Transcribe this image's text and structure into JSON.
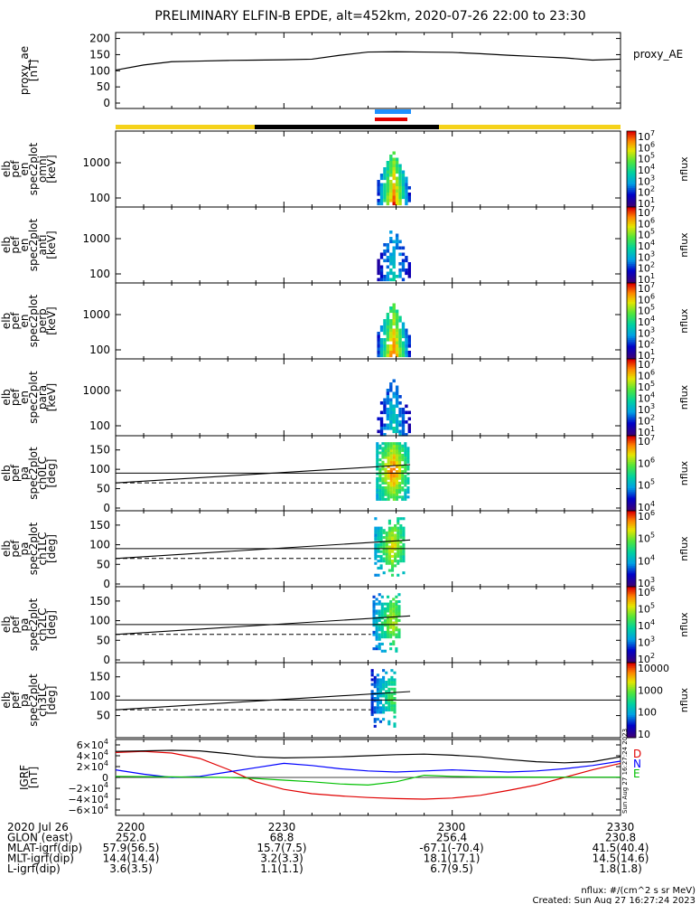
{
  "title": "PRELIMINARY ELFIN-B EPDE, alt=452km, 2020-07-26 22:00 to 23:30",
  "colors": {
    "bar_yellow": "#f5d21a",
    "bar_black": "#000000",
    "bar_blue": "#1e90ff",
    "bar_red": "#e00000",
    "line_red": "#e00000",
    "line_blue": "#0000ff",
    "line_green": "#00c000",
    "line_black": "#000000"
  },
  "chart_data": [
    {
      "type": "line",
      "panel": "proxy_ae",
      "ylabel": "proxy_ae\n[nT]",
      "legend": "proxy_AE",
      "y_ticks": [
        "200",
        "150",
        "100",
        "50",
        "0"
      ],
      "ylim": [
        0,
        210
      ],
      "x": [
        0,
        5,
        10,
        15,
        20,
        25,
        30,
        35,
        40,
        45,
        50,
        55,
        60,
        65,
        70,
        75,
        80,
        85,
        90
      ],
      "y": [
        102,
        118,
        128,
        130,
        132,
        133,
        134,
        136,
        148,
        158,
        159,
        158,
        157,
        153,
        148,
        144,
        140,
        133,
        136
      ]
    },
    {
      "type": "heatmap",
      "panel": "en_spec2plot_omni",
      "ylabel": "elb\npef\nen\nspec2plot\nomni\n[keV]",
      "y_ticks": [
        "1000",
        "100"
      ],
      "colorbar_label": "nflux",
      "colorbar_ticks": [
        "10^7",
        "10^6",
        "10^5",
        "10^4",
        "10^3",
        "10^2",
        "10^1"
      ]
    },
    {
      "type": "heatmap",
      "panel": "en_spec2plot_anti",
      "ylabel": "elb\npef\nen\nspec2plot\nanti\n[keV]",
      "y_ticks": [
        "1000",
        "100"
      ],
      "colorbar_label": "nflux",
      "colorbar_ticks": [
        "10^7",
        "10^6",
        "10^5",
        "10^4",
        "10^3",
        "10^2",
        "10^1"
      ]
    },
    {
      "type": "heatmap",
      "panel": "en_spec2plot_perp",
      "ylabel": "elb\npef\nen\nspec2plot\nperp\n[keV]",
      "y_ticks": [
        "1000",
        "100"
      ],
      "colorbar_label": "nflux",
      "colorbar_ticks": [
        "10^7",
        "10^6",
        "10^5",
        "10^4",
        "10^3",
        "10^2",
        "10^1"
      ]
    },
    {
      "type": "heatmap",
      "panel": "en_spec2plot_para",
      "ylabel": "elb\npef\nen\nspec2plot\npara\n[keV]",
      "y_ticks": [
        "1000",
        "100"
      ],
      "colorbar_label": "nflux",
      "colorbar_ticks": [
        "10^7",
        "10^6",
        "10^5",
        "10^4",
        "10^3",
        "10^2",
        "10^1"
      ]
    },
    {
      "type": "heatmap",
      "panel": "pa_spec2plot_ch0LC",
      "ylabel": "elb\npef\npa\nspec2plot\nch0LC\n[deg]",
      "y_ticks": [
        "150",
        "100",
        "50",
        "0"
      ],
      "colorbar_label": "nflux",
      "colorbar_ticks": [
        "10^7",
        "10^6",
        "10^5",
        "10^4"
      ]
    },
    {
      "type": "heatmap",
      "panel": "pa_spec2plot_ch1LC",
      "ylabel": "elb\npef\npa\nspec2plot\nch1LC\n[deg]",
      "y_ticks": [
        "150",
        "100",
        "50",
        "0"
      ],
      "colorbar_label": "nflux",
      "colorbar_ticks": [
        "10^6",
        "10^5",
        "10^4",
        "10^3"
      ]
    },
    {
      "type": "heatmap",
      "panel": "pa_spec2plot_ch2LC",
      "ylabel": "elb\npef\npa\nspec2plot\nch2LC\n[deg]",
      "y_ticks": [
        "150",
        "100",
        "50",
        "0"
      ],
      "colorbar_label": "nflux",
      "colorbar_ticks": [
        "10^6",
        "10^5",
        "10^4",
        "10^3",
        "10^2"
      ]
    },
    {
      "type": "heatmap",
      "panel": "pa_spec2plot_ch3LC",
      "ylabel": "elb\npef\npa\nspec2plot\nch3LC\n[deg]",
      "y_ticks": [
        "150",
        "100",
        "50"
      ],
      "colorbar_label": "nflux",
      "colorbar_ticks": [
        "10000",
        "1000",
        "100",
        "10"
      ]
    },
    {
      "type": "line",
      "panel": "igrf",
      "ylabel": "IGRF\n[nT]",
      "y_ticks": [
        "6×10^4",
        "4×10^4",
        "2×10^4",
        "0",
        "−2×10^4",
        "−4×10^4",
        "−6×10^4"
      ],
      "ylim": [
        -65000,
        65000
      ],
      "legend": [
        "D",
        "N",
        "E"
      ],
      "x": [
        0,
        5,
        10,
        15,
        20,
        25,
        30,
        35,
        40,
        45,
        50,
        55,
        60,
        65,
        70,
        75,
        80,
        85,
        90
      ],
      "series": [
        {
          "name": "D",
          "values": [
            46000,
            48000,
            45000,
            35000,
            15000,
            -8000,
            -22000,
            -30000,
            -34000,
            -37000,
            -39000,
            -40000,
            -38000,
            -33000,
            -24000,
            -14000,
            0,
            14000,
            26000
          ]
        },
        {
          "name": "N",
          "values": [
            14000,
            6000,
            0,
            2000,
            10000,
            18000,
            26000,
            22000,
            16000,
            12000,
            10000,
            12000,
            14000,
            12000,
            10000,
            12000,
            16000,
            22000,
            30000
          ]
        },
        {
          "name": "E",
          "values": [
            2000,
            1500,
            1000,
            500,
            0,
            -2000,
            -5000,
            -8000,
            -12000,
            -14000,
            -8000,
            4000,
            2000,
            1000,
            800,
            600,
            500,
            500,
            500
          ]
        },
        {
          "name": "total",
          "values": [
            48000,
            49000,
            50000,
            49000,
            44000,
            38000,
            36000,
            37000,
            38000,
            40000,
            42000,
            43000,
            41000,
            38000,
            33000,
            29000,
            27000,
            29000,
            38000
          ]
        }
      ]
    }
  ],
  "bottom_axis": {
    "rows": [
      {
        "label": "2020 Jul 26",
        "values": [
          "2200",
          "2230",
          "2300",
          "2330"
        ]
      },
      {
        "label": "GLON (east)",
        "values": [
          "252.0",
          "68.8",
          "256.4",
          "230.8"
        ]
      },
      {
        "label": "MLAT-igrf(dip)",
        "values": [
          "57.9(56.5)",
          "15.7(7.5)",
          "-67.1(-70.4)",
          "41.5(40.4)"
        ]
      },
      {
        "label": "MLT-igrf(dip)",
        "values": [
          "14.4(14.4)",
          "3.2(3.3)",
          "18.1(17.1)",
          "14.5(14.6)"
        ]
      },
      {
        "label": "L-igrf(dip)",
        "values": [
          "3.6(3.5)",
          "1.1(1.1)",
          "6.7(9.5)",
          "1.8(1.8)"
        ]
      }
    ]
  },
  "footer": {
    "units": "nflux: #/(cm^2 s sr MeV)",
    "created": "Created: Sun Aug 27 16:27:24 2023",
    "stamp": "Sun Aug 27 16:27:24 2023"
  }
}
